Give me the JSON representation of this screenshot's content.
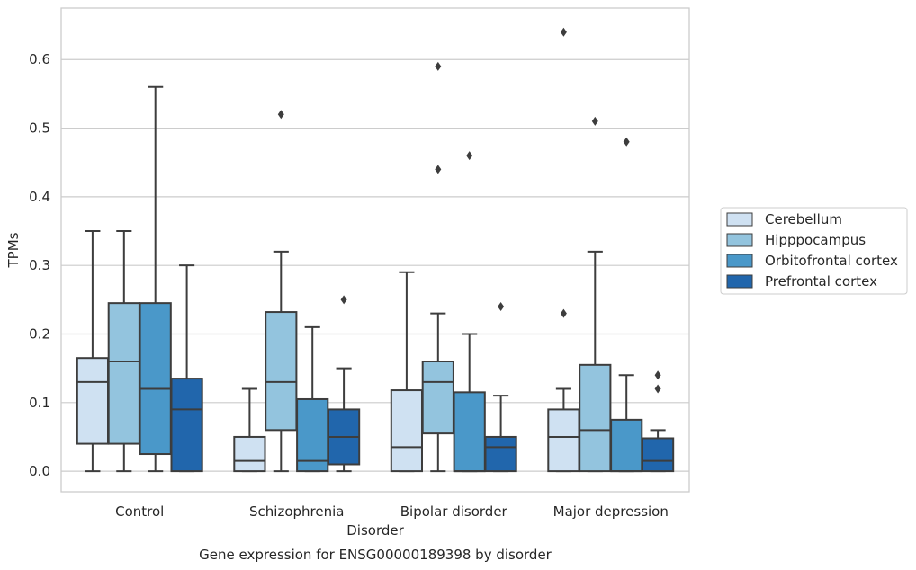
{
  "chart_data": {
    "type": "box",
    "caption": "Gene expression for ENSG00000189398 by disorder",
    "xlabel": "Disorder",
    "ylabel": "TPMs",
    "ylim": [
      -0.03,
      0.675
    ],
    "yticks": [
      0.0,
      0.1,
      0.2,
      0.3,
      0.4,
      0.5,
      0.6
    ],
    "ytick_labels": [
      "0.0",
      "0.1",
      "0.2",
      "0.3",
      "0.4",
      "0.5",
      "0.6"
    ],
    "grid": true,
    "legend_position": "right",
    "categories": [
      "Control",
      "Schizophrenia",
      "Bipolar disorder",
      "Major depression"
    ],
    "series": [
      {
        "name": "Cerebellum",
        "color": "#cfe1f2",
        "boxes": [
          {
            "whisker_low": 0.0,
            "q1": 0.04,
            "median": 0.13,
            "q3": 0.165,
            "whisker_high": 0.35,
            "outliers": []
          },
          {
            "whisker_low": 0.0,
            "q1": 0.0,
            "median": 0.015,
            "q3": 0.05,
            "whisker_high": 0.12,
            "outliers": []
          },
          {
            "whisker_low": 0.0,
            "q1": 0.0,
            "median": 0.035,
            "q3": 0.118,
            "whisker_high": 0.29,
            "outliers": []
          },
          {
            "whisker_low": 0.0,
            "q1": 0.0,
            "median": 0.05,
            "q3": 0.09,
            "whisker_high": 0.12,
            "outliers": [
              0.23,
              0.64
            ]
          }
        ]
      },
      {
        "name": "Hipppocampus",
        "color": "#93c4de",
        "boxes": [
          {
            "whisker_low": 0.0,
            "q1": 0.04,
            "median": 0.16,
            "q3": 0.245,
            "whisker_high": 0.35,
            "outliers": []
          },
          {
            "whisker_low": 0.0,
            "q1": 0.06,
            "median": 0.13,
            "q3": 0.232,
            "whisker_high": 0.32,
            "outliers": [
              0.52
            ]
          },
          {
            "whisker_low": 0.0,
            "q1": 0.055,
            "median": 0.13,
            "q3": 0.16,
            "whisker_high": 0.23,
            "outliers": [
              0.44,
              0.59
            ]
          },
          {
            "whisker_low": 0.0,
            "q1": 0.0,
            "median": 0.06,
            "q3": 0.155,
            "whisker_high": 0.32,
            "outliers": [
              0.51
            ]
          }
        ]
      },
      {
        "name": "Orbitofrontal cortex",
        "color": "#4a98c9",
        "boxes": [
          {
            "whisker_low": 0.0,
            "q1": 0.025,
            "median": 0.12,
            "q3": 0.245,
            "whisker_high": 0.56,
            "outliers": []
          },
          {
            "whisker_low": 0.0,
            "q1": 0.0,
            "median": 0.015,
            "q3": 0.105,
            "whisker_high": 0.21,
            "outliers": []
          },
          {
            "whisker_low": 0.0,
            "q1": 0.0,
            "median": 0.0,
            "q3": 0.115,
            "whisker_high": 0.2,
            "outliers": [
              0.46
            ]
          },
          {
            "whisker_low": 0.0,
            "q1": 0.0,
            "median": 0.0,
            "q3": 0.075,
            "whisker_high": 0.14,
            "outliers": [
              0.48
            ]
          }
        ]
      },
      {
        "name": "Prefrontal cortex",
        "color": "#2166ac",
        "boxes": [
          {
            "whisker_low": 0.0,
            "q1": 0.0,
            "median": 0.09,
            "q3": 0.135,
            "whisker_high": 0.3,
            "outliers": []
          },
          {
            "whisker_low": 0.0,
            "q1": 0.01,
            "median": 0.05,
            "q3": 0.09,
            "whisker_high": 0.15,
            "outliers": [
              0.25
            ]
          },
          {
            "whisker_low": 0.0,
            "q1": 0.0,
            "median": 0.035,
            "q3": 0.05,
            "whisker_high": 0.11,
            "outliers": [
              0.24
            ]
          },
          {
            "whisker_low": 0.0,
            "q1": 0.0,
            "median": 0.015,
            "q3": 0.048,
            "whisker_high": 0.06,
            "outliers": [
              0.12,
              0.14
            ]
          }
        ]
      }
    ]
  }
}
